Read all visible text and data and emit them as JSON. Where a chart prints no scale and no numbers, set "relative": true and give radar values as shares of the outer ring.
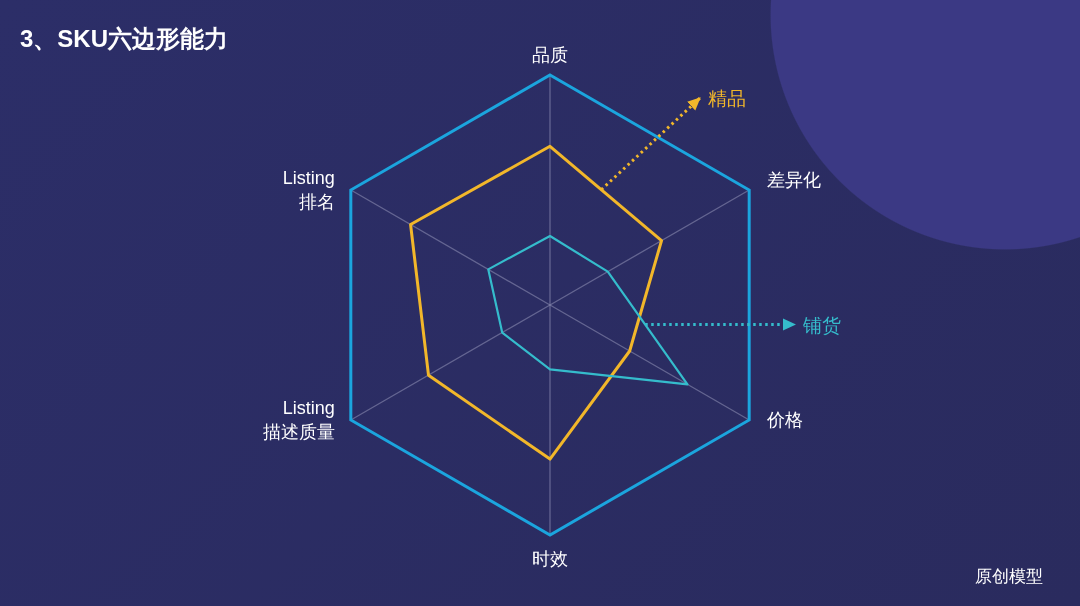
{
  "chart_data": {
    "type": "radar",
    "title": "3、SKU六边形能力",
    "categories": [
      "品质",
      "差异化",
      "价格",
      "时效",
      "Listing\n描述质量",
      "Listing\n排名"
    ],
    "relative": true,
    "grid": true,
    "series": [
      {
        "name": "精品",
        "color": "#f2b72a",
        "values": [
          0.69,
          0.56,
          0.4,
          0.67,
          0.61,
          0.7
        ]
      },
      {
        "name": "铺货",
        "color": "#35bccc",
        "values": [
          0.3,
          0.29,
          0.69,
          0.28,
          0.24,
          0.31
        ]
      }
    ],
    "annotations": [
      "原创模型"
    ]
  }
}
